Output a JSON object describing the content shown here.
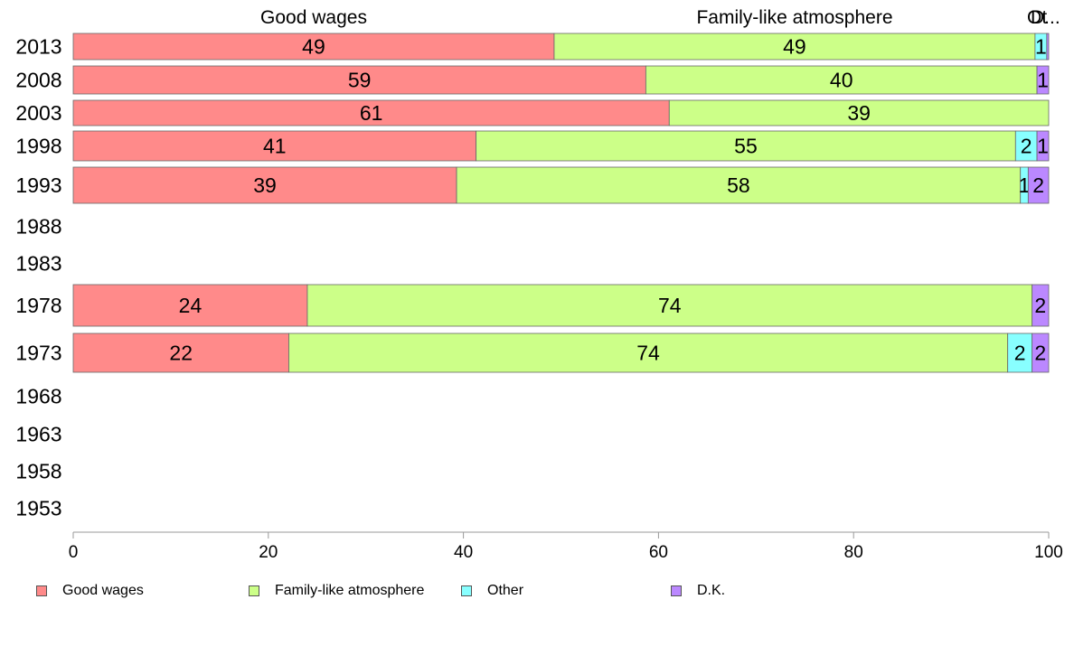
{
  "chart_data": {
    "type": "bar",
    "orientation": "horizontal",
    "stacked": true,
    "categories": [
      "2013",
      "2008",
      "2003",
      "1998",
      "1993",
      "1988",
      "1983",
      "1978",
      "1973",
      "1968",
      "1963",
      "1958",
      "1953"
    ],
    "series": [
      {
        "name": "Good wages",
        "color": "#ff8a8a",
        "values": [
          49.3,
          58.7,
          61.1,
          41.3,
          39.3,
          null,
          null,
          24.0,
          22.1,
          null,
          null,
          null,
          null
        ],
        "labels": [
          "49",
          "59",
          "61",
          "41",
          "39",
          "",
          "",
          "24",
          "22",
          "",
          "",
          "",
          ""
        ]
      },
      {
        "name": "Family-like atmosphere",
        "color": "#ccff88",
        "values": [
          49.3,
          40.1,
          38.9,
          55.3,
          57.8,
          null,
          null,
          74.3,
          73.7,
          null,
          null,
          null,
          null
        ],
        "labels": [
          "49",
          "40",
          "39",
          "55",
          "58",
          "",
          "",
          "74",
          "74",
          "",
          "",
          "",
          ""
        ]
      },
      {
        "name": "Other",
        "color": "#88ffff",
        "values": [
          1.2,
          0.0,
          0.0,
          2.2,
          0.8,
          null,
          null,
          0.0,
          2.5,
          null,
          null,
          null,
          null
        ],
        "labels": [
          "1",
          "",
          "",
          "2",
          "1",
          "",
          "",
          "",
          "2",
          "",
          "",
          "",
          ""
        ]
      },
      {
        "name": "D.K.",
        "color": "#bb88ff",
        "values": [
          0.2,
          1.2,
          0.0,
          1.2,
          2.1,
          null,
          null,
          1.7,
          1.7,
          null,
          null,
          null,
          null
        ],
        "labels": [
          "",
          "1",
          "",
          "1",
          "2",
          "",
          "",
          "2",
          "2",
          "",
          "",
          "",
          ""
        ]
      }
    ],
    "top_labels": [
      "Good wages",
      "Family-like atmosphere",
      "Ot",
      "D..."
    ],
    "xlim": [
      0,
      100
    ],
    "xticks": [
      "0",
      "20",
      "40",
      "60",
      "80",
      "100"
    ],
    "grid": false,
    "legend_position": "bottom"
  }
}
